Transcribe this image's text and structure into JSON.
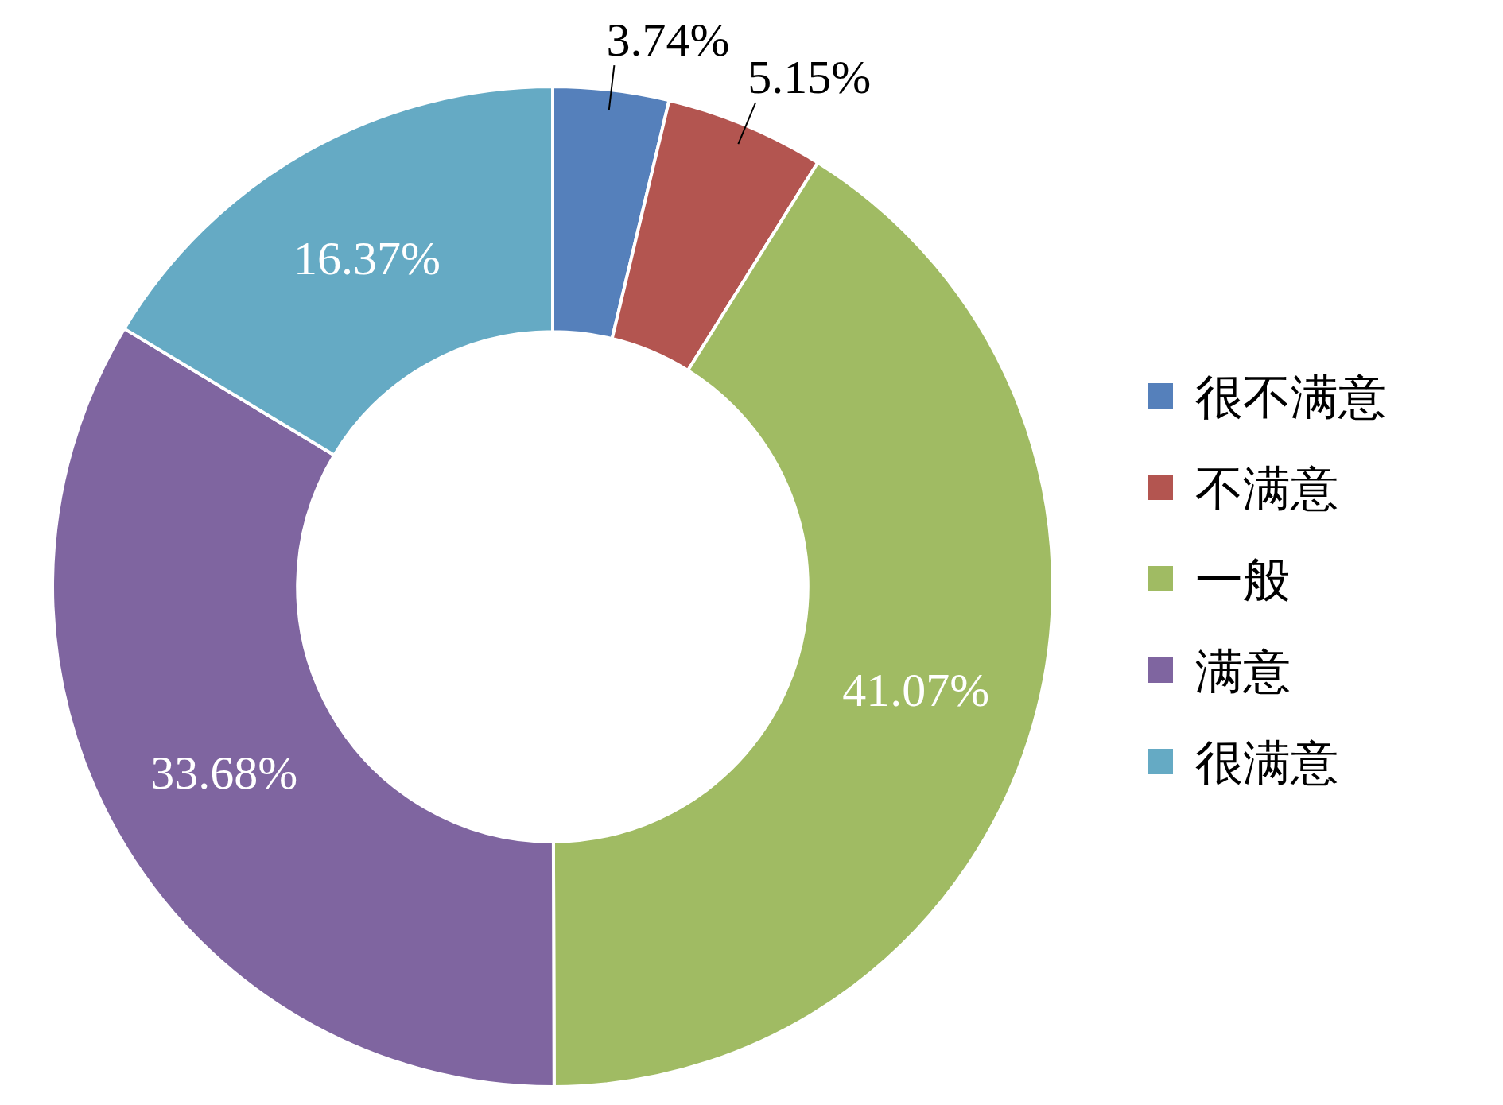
{
  "chart_data": {
    "type": "donut",
    "categories": [
      "很不满意",
      "不满意",
      "一般",
      "满意",
      "很满意"
    ],
    "values": [
      3.74,
      5.15,
      41.07,
      33.68,
      16.37
    ],
    "colors": [
      "#5580bb",
      "#b35550",
      "#a0bb63",
      "#7f65a0",
      "#65aac4"
    ],
    "value_labels": [
      "3.74%",
      "5.15%",
      "41.07%",
      "33.68%",
      "16.37%"
    ],
    "legend": "right"
  }
}
